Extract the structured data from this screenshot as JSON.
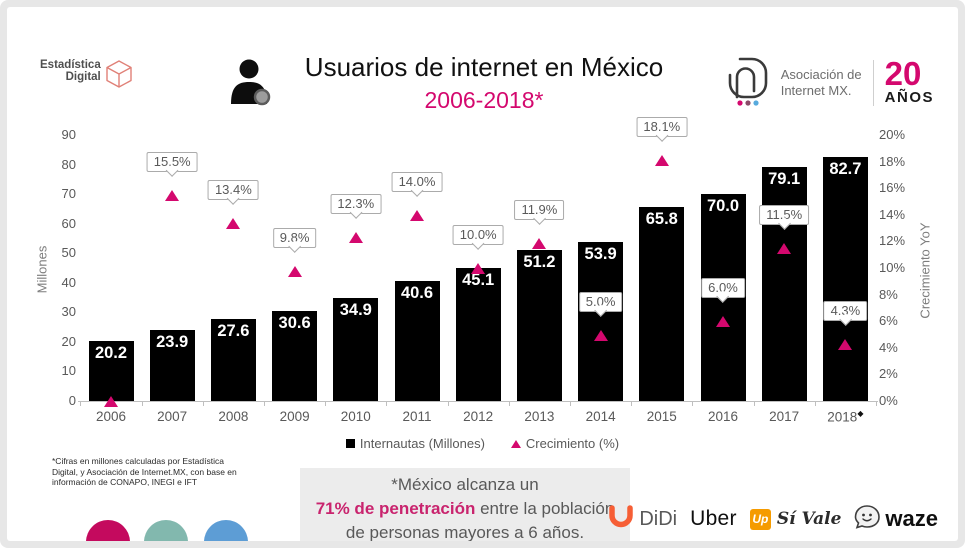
{
  "branding": {
    "estadistica": {
      "line1": "Estadística",
      "line2": "Digital"
    },
    "aimx": {
      "line1": "Asociación de",
      "line2": "Internet MX.",
      "badge_number": "20",
      "badge_word": "AÑOS"
    }
  },
  "header": {
    "title": "Usuarios de internet en México",
    "subtitle": "2006-2018*"
  },
  "chart_data": {
    "type": "bar",
    "title": "Usuarios de internet en México 2006-2018*",
    "categories": [
      "2006",
      "2007",
      "2008",
      "2009",
      "2010",
      "2011",
      "2012",
      "2013",
      "2014",
      "2015",
      "2016",
      "2017",
      "2018"
    ],
    "last_category_mark": "◆",
    "series": [
      {
        "name": "Internautas (Millones)",
        "type": "bar",
        "color": "#000000",
        "values": [
          20.2,
          23.9,
          27.6,
          30.6,
          34.9,
          40.6,
          45.1,
          51.2,
          53.9,
          65.8,
          70.0,
          79.1,
          82.7
        ],
        "labels": [
          "20.2",
          "23.9",
          "27.6",
          "30.6",
          "34.9",
          "40.6",
          "45.1",
          "51.2",
          "53.9",
          "65.8",
          "70.0",
          "79.1",
          "82.7"
        ]
      },
      {
        "name": "Crecimiento (%)",
        "type": "scatter",
        "marker": "triangle",
        "color": "#d4086e",
        "values": [
          0,
          15.5,
          13.4,
          9.8,
          12.3,
          14.0,
          10.0,
          11.9,
          5.0,
          18.1,
          6.0,
          11.5,
          4.3
        ],
        "labels": [
          null,
          "15.5%",
          "13.4%",
          "9.8%",
          "12.3%",
          "14.0%",
          "10.0%",
          "11.9%",
          "5.0%",
          "18.1%",
          "6.0%",
          "11.5%",
          "4.3%"
        ]
      }
    ],
    "axis_left": {
      "label": "Millones",
      "min": 0,
      "max": 90,
      "step": 10,
      "ticks": [
        "0",
        "10",
        "20",
        "30",
        "40",
        "50",
        "60",
        "70",
        "80",
        "90"
      ]
    },
    "axis_right": {
      "label": "Crecimiento YoY",
      "min": 0,
      "max": 20,
      "step": 2,
      "ticks": [
        "0%",
        "2%",
        "4%",
        "6%",
        "8%",
        "10%",
        "12%",
        "14%",
        "16%",
        "18%",
        "20%"
      ]
    },
    "grid": false,
    "legend_position": "bottom"
  },
  "legend": {
    "items": [
      {
        "label": "Internautas (Millones)",
        "marker": "square",
        "color": "#000000"
      },
      {
        "label": "Crecimiento (%)",
        "marker": "triangle",
        "color": "#d4086e"
      }
    ]
  },
  "footnote": {
    "lines": [
      "*Cifras en millones calculadas por Estadística",
      "Digital, y Asociación de Internet.MX, con base en",
      "información de CONAPO, INEGI e IFT"
    ]
  },
  "highlight": {
    "line1": "*México alcanza un",
    "pink": "71% de penetración",
    "line2_rest": " entre la población",
    "line3": "de personas mayores a 6 años."
  },
  "partners": {
    "didi": "DiDi",
    "uber": "Uber",
    "up": "Up",
    "sivale": "Sí Vale",
    "waze": "waze"
  },
  "decor_circles": [
    "#c40a5e",
    "#82b8ae",
    "#5d9dd5"
  ],
  "colors": {
    "accent": "#d4086e",
    "bar": "#060606",
    "axis_text": "#595959",
    "callout_border": "#ababab",
    "frame": "#e7e7e7"
  }
}
